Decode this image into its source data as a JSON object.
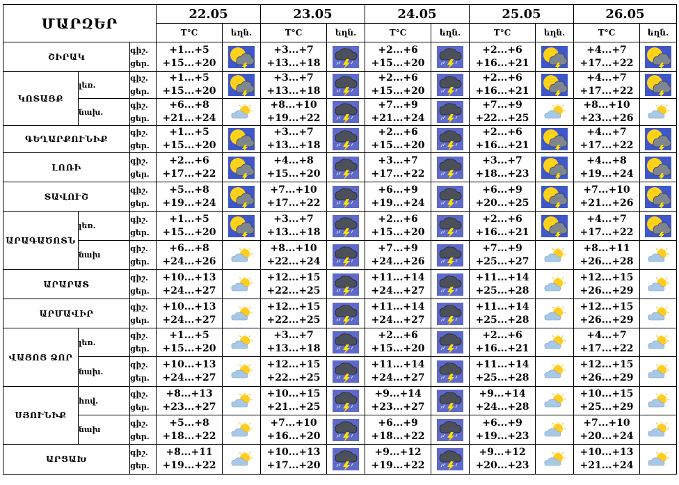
{
  "header": {
    "region_title": "ՄԱՐԶԵՐ",
    "dates": [
      "22.05",
      "23.05",
      "24.05",
      "25.05",
      "26.05"
    ],
    "temp_col": "T°C",
    "weather_col": "եղն."
  },
  "icons": {
    "storm_sun": "sun-behind-storm-cloud-icon",
    "storm": "thunderstorm-cloud-icon",
    "cloud_sun": "sun-behind-cloud-icon"
  },
  "rows": [
    {
      "region": "ՇԻՐԱԿ",
      "part": "",
      "l1": "գիշ.",
      "l2": "ցեր.",
      "days": [
        {
          "n": "+1...+5",
          "d": "+15...+20",
          "icon": "storm_sun"
        },
        {
          "n": "+3...+7",
          "d": "+13...+18",
          "icon": "storm"
        },
        {
          "n": "+2...+6",
          "d": "+15...+20",
          "icon": "storm"
        },
        {
          "n": "+2...+6",
          "d": "+16...+21",
          "icon": "storm_sun"
        },
        {
          "n": "+4...+7",
          "d": "+17...+22",
          "icon": "storm_sun"
        }
      ]
    },
    {
      "region": "ԿՈՏԱՅՔ",
      "part": "լեռ.",
      "l1": "գիշ.",
      "l2": "ցեր.",
      "days": [
        {
          "n": "+1...+5",
          "d": "+15...+20",
          "icon": "storm_sun"
        },
        {
          "n": "+3...+7",
          "d": "+13...+18",
          "icon": "storm"
        },
        {
          "n": "+2...+6",
          "d": "+15...+20",
          "icon": "storm"
        },
        {
          "n": "+2...+6",
          "d": "+16...+21",
          "icon": "storm_sun"
        },
        {
          "n": "+4...+7",
          "d": "+17...+22",
          "icon": "storm_sun"
        }
      ]
    },
    {
      "region": "",
      "part": "նախ.",
      "l1": "գիշ.",
      "l2": "ցեր.",
      "days": [
        {
          "n": "+6...+8",
          "d": "+21...+24",
          "icon": "cloud_sun"
        },
        {
          "n": "+8...+10",
          "d": "+19...+22",
          "icon": "storm"
        },
        {
          "n": "+7...+9",
          "d": "+21...+24",
          "icon": "storm"
        },
        {
          "n": "+7...+9",
          "d": "+22...+25",
          "icon": "cloud_sun"
        },
        {
          "n": "+8...+10",
          "d": "+23...+26",
          "icon": "cloud_sun"
        }
      ]
    },
    {
      "region": "ԳԵՂԱՐՔՈՒՆԻՔ",
      "part": "",
      "l1": "գիշ.",
      "l2": "ցեր.",
      "days": [
        {
          "n": "+1...+5",
          "d": "+15...+20",
          "icon": "storm_sun"
        },
        {
          "n": "+3...+7",
          "d": "+13...+18",
          "icon": "storm"
        },
        {
          "n": "+2...+6",
          "d": "+15...+20",
          "icon": "storm"
        },
        {
          "n": "+2...+6",
          "d": "+16...+21",
          "icon": "storm_sun"
        },
        {
          "n": "+4...+7",
          "d": "+17...+22",
          "icon": "storm_sun"
        }
      ]
    },
    {
      "region": "ԼՈՌԻ",
      "part": "",
      "l1": "գիշ.",
      "l2": "ցեր.",
      "days": [
        {
          "n": "+2...+6",
          "d": "+17...+22",
          "icon": "storm_sun"
        },
        {
          "n": "+4...+8",
          "d": "+15...+20",
          "icon": "storm"
        },
        {
          "n": "+3...+7",
          "d": "+17...+22",
          "icon": "storm"
        },
        {
          "n": "+3...+7",
          "d": "+18...+23",
          "icon": "storm_sun"
        },
        {
          "n": "+4...+8",
          "d": "+19...+24",
          "icon": "storm_sun"
        }
      ]
    },
    {
      "region": "ՏԱՎՈՒՇ",
      "part": "",
      "l1": "գիշ.",
      "l2": "ցեր.",
      "days": [
        {
          "n": "+5...+8",
          "d": "+19...+24",
          "icon": "storm_sun"
        },
        {
          "n": "+7...+10",
          "d": "+17...+22",
          "icon": "storm"
        },
        {
          "n": "+6...+9",
          "d": "+19...+24",
          "icon": "storm"
        },
        {
          "n": "+6...+9",
          "d": "+20...+25",
          "icon": "storm_sun"
        },
        {
          "n": "+7...+10",
          "d": "+21...+26",
          "icon": "storm_sun"
        }
      ]
    },
    {
      "region": "ԱՐԱԳԱԾՈՏՆ",
      "part": "լեռ.",
      "l1": "գիշ.",
      "l2": "ցեր.",
      "days": [
        {
          "n": "+1...+5",
          "d": "+15...+20",
          "icon": "storm_sun"
        },
        {
          "n": "+3...+7",
          "d": "+13...+18",
          "icon": "storm"
        },
        {
          "n": "+2...+6",
          "d": "+15...+20",
          "icon": "storm"
        },
        {
          "n": "+2...+6",
          "d": "+16...+21",
          "icon": "storm_sun"
        },
        {
          "n": "+4...+7",
          "d": "+17...+22",
          "icon": "storm_sun"
        }
      ]
    },
    {
      "region": "",
      "part": "նախ",
      "l1": "գիշ.",
      "l2": "ցեր.",
      "days": [
        {
          "n": "+6...+8",
          "d": "+24...+26",
          "icon": "cloud_sun"
        },
        {
          "n": "+8...+10",
          "d": "+22...+24",
          "icon": "storm"
        },
        {
          "n": "+7...+9",
          "d": "+24...+26",
          "icon": "storm"
        },
        {
          "n": "+7...+9",
          "d": "+25...+27",
          "icon": "cloud_sun"
        },
        {
          "n": "+8...+11",
          "d": "+26...+28",
          "icon": "cloud_sun"
        }
      ]
    },
    {
      "region": "ԱՐԱՐԱՏ",
      "part": "",
      "l1": "գիշ.",
      "l2": "ցեր.",
      "days": [
        {
          "n": "+10...+13",
          "d": "+24...+27",
          "icon": "cloud_sun"
        },
        {
          "n": "+12...+15",
          "d": "+22...+25",
          "icon": "storm"
        },
        {
          "n": "+11...+14",
          "d": "+24...+27",
          "icon": "storm"
        },
        {
          "n": "+11...+14",
          "d": "+25...+28",
          "icon": "cloud_sun"
        },
        {
          "n": "+12...+15",
          "d": "+26...+29",
          "icon": "cloud_sun"
        }
      ]
    },
    {
      "region": "ԱՐՄԱՎԻՐ",
      "part": "",
      "l1": "գիշ.",
      "l2": "ցեր.",
      "days": [
        {
          "n": "+10...+13",
          "d": "+24...+27",
          "icon": "cloud_sun"
        },
        {
          "n": "+12...+15",
          "d": "+22...+25",
          "icon": "storm"
        },
        {
          "n": "+11...+14",
          "d": "+24...+27",
          "icon": "storm"
        },
        {
          "n": "+11...+14",
          "d": "+25...+28",
          "icon": "cloud_sun"
        },
        {
          "n": "+12...+15",
          "d": "+26...+29",
          "icon": "cloud_sun"
        }
      ]
    },
    {
      "region": "ՎԱՅՈՑ ՁՈՐ",
      "part": "լեռ.",
      "l1": "գիշ.",
      "l2": "ցեր.",
      "days": [
        {
          "n": "+1...+5",
          "d": "+15...+20",
          "icon": "cloud_sun"
        },
        {
          "n": "+3...+7",
          "d": "+13...+18",
          "icon": "storm"
        },
        {
          "n": "+2...+6",
          "d": "+15...+20",
          "icon": "storm"
        },
        {
          "n": "+2...+6",
          "d": "+16...+21",
          "icon": "cloud_sun"
        },
        {
          "n": "+4...+7",
          "d": "+17...+22",
          "icon": "cloud_sun"
        }
      ]
    },
    {
      "region": "",
      "part": "նախ.",
      "l1": "գիշ.",
      "l2": "ցեր.",
      "days": [
        {
          "n": "+10...+13",
          "d": "+24...+27",
          "icon": "cloud_sun"
        },
        {
          "n": "+12...+15",
          "d": "+22...+25",
          "icon": "storm"
        },
        {
          "n": "+11...+14",
          "d": "+24...+27",
          "icon": "storm"
        },
        {
          "n": "+11...+14",
          "d": "+25...+28",
          "icon": "cloud_sun"
        },
        {
          "n": "+12...+15",
          "d": "+26...+29",
          "icon": "cloud_sun"
        }
      ]
    },
    {
      "region": "ՍՅՈՒՆԻՔ",
      "part": "հով.",
      "l1": "գիշ.",
      "l2": "ցեր.",
      "days": [
        {
          "n": "+8...+13",
          "d": "+23...+27",
          "icon": "cloud_sun"
        },
        {
          "n": "+10...+15",
          "d": "+21...+25",
          "icon": "storm"
        },
        {
          "n": "+9...+14",
          "d": "+23...+27",
          "icon": "storm"
        },
        {
          "n": "+9...+14",
          "d": "+24...+28",
          "icon": "cloud_sun"
        },
        {
          "n": "+10...+15",
          "d": "+25...+29",
          "icon": "cloud_sun"
        }
      ]
    },
    {
      "region": "",
      "part": "նախ",
      "l1": "գիշ.",
      "l2": "ցեր.",
      "days": [
        {
          "n": "+5...+8",
          "d": "+18...+22",
          "icon": "cloud_sun"
        },
        {
          "n": "+7...+10",
          "d": "+16...+20",
          "icon": "storm"
        },
        {
          "n": "+6...+9",
          "d": "+18...+22",
          "icon": "storm"
        },
        {
          "n": "+6...+9",
          "d": "+19...+23",
          "icon": "cloud_sun"
        },
        {
          "n": "+7...+10",
          "d": "+20...+24",
          "icon": "cloud_sun"
        }
      ]
    },
    {
      "region": "ԱՐՑԱԽ",
      "part": "",
      "l1": "գիշ.",
      "l2": "ցեր.",
      "days": [
        {
          "n": "+8...+11",
          "d": "+19...+22",
          "icon": "cloud_sun"
        },
        {
          "n": "+10...+13",
          "d": "+17...+20",
          "icon": "storm"
        },
        {
          "n": "+9...+12",
          "d": "+19...+22",
          "icon": "storm"
        },
        {
          "n": "+9...+12",
          "d": "+20...+23",
          "icon": "cloud_sun"
        },
        {
          "n": "+10...+13",
          "d": "+21...+24",
          "icon": "cloud_sun"
        }
      ]
    }
  ]
}
